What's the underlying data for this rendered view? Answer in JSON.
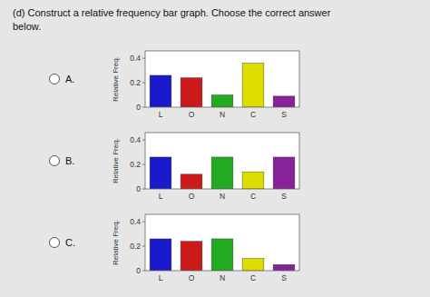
{
  "title": [
    "(d) Construct a relative frequency bar graph. Choose the correct answer",
    "below."
  ],
  "chart_data": [
    {
      "type": "bar",
      "title": "A.",
      "categories": [
        "L",
        "O",
        "N",
        "C",
        "S"
      ],
      "values": [
        0.26,
        0.24,
        0.1,
        0.36,
        0.09
      ],
      "colors": [
        "#1a1acc",
        "#cc1a1a",
        "#22aa22",
        "#dddd00",
        "#882299"
      ],
      "ylabel": "Relative Freq.",
      "ylim": [
        0,
        0.46
      ],
      "yticks": [
        0,
        0.2,
        0.4
      ],
      "grid": false
    },
    {
      "type": "bar",
      "title": "B.",
      "categories": [
        "L",
        "O",
        "N",
        "C",
        "S"
      ],
      "values": [
        0.26,
        0.12,
        0.26,
        0.14,
        0.26
      ],
      "colors": [
        "#1a1acc",
        "#cc1a1a",
        "#22aa22",
        "#dddd00",
        "#882299"
      ],
      "ylabel": "Relative Freq.",
      "ylim": [
        0,
        0.46
      ],
      "yticks": [
        0,
        0.2,
        0.4
      ],
      "grid": false
    },
    {
      "type": "bar",
      "title": "C.",
      "categories": [
        "L",
        "O",
        "N",
        "C",
        "S"
      ],
      "values": [
        0.26,
        0.24,
        0.26,
        0.1,
        0.05
      ],
      "colors": [
        "#1a1acc",
        "#cc1a1a",
        "#22aa22",
        "#dddd00",
        "#882299"
      ],
      "ylabel": "Relative Freq.",
      "ylim": [
        0,
        0.46
      ],
      "yticks": [
        0,
        0.2,
        0.4
      ],
      "grid": false
    }
  ]
}
